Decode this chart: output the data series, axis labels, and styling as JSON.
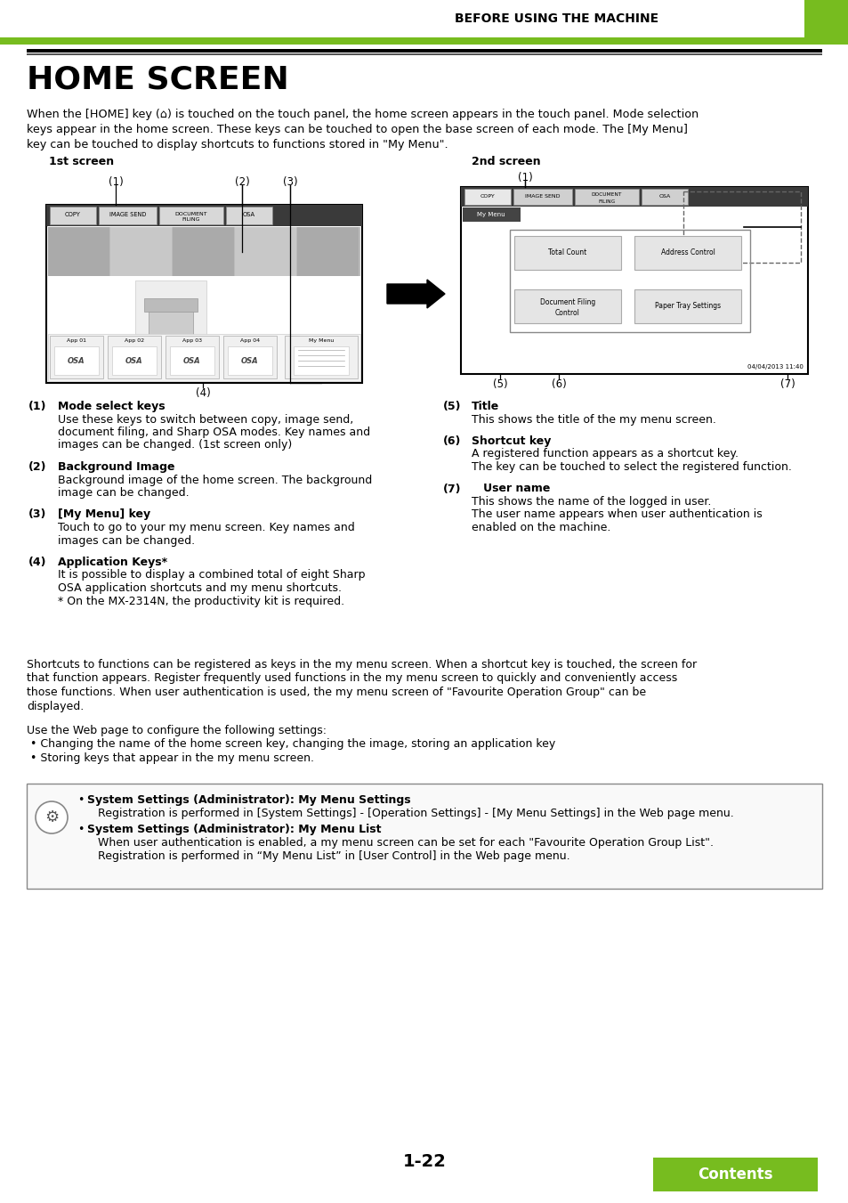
{
  "header_text": "BEFORE USING THE MACHINE",
  "header_green_color": "#77bc1f",
  "title": "HOME SCREEN",
  "intro_line1": "When the [HOME] key (⌂) is touched on the touch panel, the home screen appears in the touch panel. Mode selection",
  "intro_line2": "keys appear in the home screen. These keys can be touched to open the base screen of each mode. The [My Menu]",
  "intro_line3": "key can be touched to display shortcuts to functions stored in \"My Menu\".",
  "screen1_label": "1st screen",
  "screen2_label": "2nd screen",
  "items_left": [
    {
      "num": "(1)",
      "bold": "Mode select keys",
      "lines": [
        "Use these keys to switch between copy, image send,",
        "document filing, and Sharp OSA modes. Key names and",
        "images can be changed. (1st screen only)"
      ]
    },
    {
      "num": "(2)",
      "bold": "Background Image",
      "lines": [
        "Background image of the home screen. The background",
        "image can be changed."
      ]
    },
    {
      "num": "(3)",
      "bold": "[My Menu] key",
      "lines": [
        "Touch to go to your my menu screen. Key names and",
        "images can be changed."
      ]
    },
    {
      "num": "(4)",
      "bold": "Application Keys*",
      "lines": [
        "It is possible to display a combined total of eight Sharp",
        "OSA application shortcuts and my menu shortcuts.",
        "* On the MX-2314N, the productivity kit is required."
      ]
    }
  ],
  "items_right": [
    {
      "num": "(5)",
      "bold": "Title",
      "lines": [
        "This shows the title of the my menu screen."
      ]
    },
    {
      "num": "(6)",
      "bold": "Shortcut key",
      "lines": [
        "A registered function appears as a shortcut key.",
        "The key can be touched to select the registered function."
      ]
    },
    {
      "num": "(7)",
      "bold": "   User name",
      "lines": [
        "This shows the name of the logged in user.",
        "The user name appears when user authentication is",
        "enabled on the machine."
      ]
    }
  ],
  "para1_lines": [
    "Shortcuts to functions can be registered as keys in the my menu screen. When a shortcut key is touched, the screen for",
    "that function appears. Register frequently used functions in the my menu screen to quickly and conveniently access",
    "those functions. When user authentication is used, the my menu screen of \"Favourite Operation Group\" can be",
    "displayed."
  ],
  "para2": "Use the Web page to configure the following settings:",
  "bullets": [
    " • Changing the name of the home screen key, changing the image, storing an application key",
    " • Storing keys that appear in the my menu screen."
  ],
  "note_bold1": "System Settings (Administrator): My Menu Settings",
  "note_text1": "   Registration is performed in [System Settings] - [Operation Settings] - [My Menu Settings] in the Web page menu.",
  "note_bold2": "System Settings (Administrator): My Menu List",
  "note_text2a": "   When user authentication is enabled, a my menu screen can be set for each \"Favourite Operation Group List\".",
  "note_text2b": "   Registration is performed in “My Menu List” in [User Control] in the Web page menu.",
  "page_num": "1-22",
  "contents_label": "Contents",
  "contents_color": "#77bc1f",
  "bg_color": "#ffffff"
}
